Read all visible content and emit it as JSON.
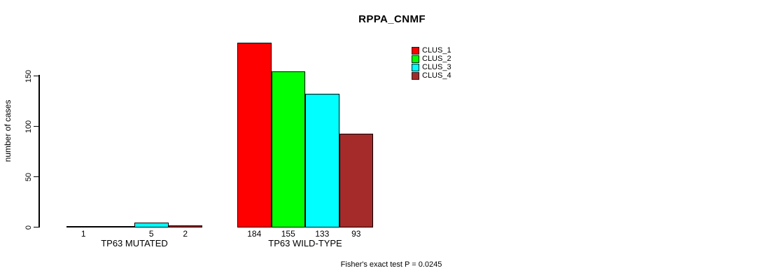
{
  "chart_data": {
    "type": "bar",
    "title": "RPPA_CNMF",
    "ylabel": "number of cases",
    "ylim": [
      0,
      190
    ],
    "yticks": [
      0,
      50,
      100,
      150
    ],
    "grid": false,
    "legend_position": "top-right-inside",
    "legend": [
      {
        "label": "CLUS_1",
        "color": "#FF0000"
      },
      {
        "label": "CLUS_2",
        "color": "#00FF00"
      },
      {
        "label": "CLUS_3",
        "color": "#00FFFF"
      },
      {
        "label": "CLUS_4",
        "color": "#A52A2A"
      }
    ],
    "groups": [
      {
        "label": "TP63 MUTATED",
        "values": [
          1,
          0,
          5,
          2
        ],
        "bar_labels": [
          "1",
          "",
          "5",
          "2"
        ]
      },
      {
        "label": "TP63 WILD-TYPE",
        "values": [
          184,
          155,
          133,
          93
        ],
        "bar_labels": [
          "184",
          "155",
          "133",
          "93"
        ]
      }
    ],
    "annotation": "Fisher's exact test P = 0.0245"
  }
}
